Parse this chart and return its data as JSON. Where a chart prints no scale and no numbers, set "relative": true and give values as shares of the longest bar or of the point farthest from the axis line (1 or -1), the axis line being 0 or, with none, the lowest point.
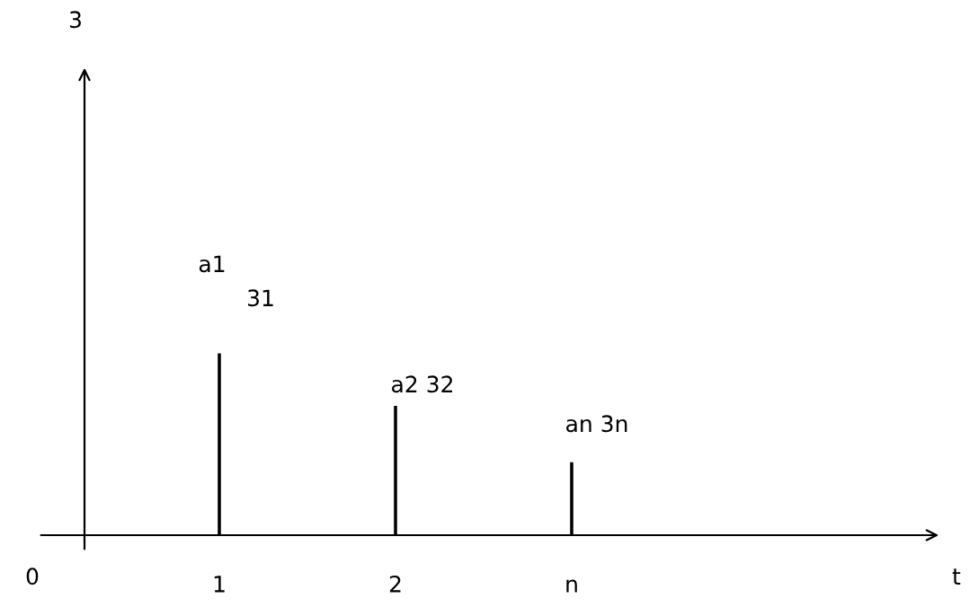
{
  "chart_data": {
    "type": "bar",
    "relative": true,
    "categories": [
      "1",
      "2",
      "n"
    ],
    "values": [
      1,
      0.71,
      0.4
    ],
    "color": "#000000",
    "grid": false,
    "annotations": [
      "a1",
      "31",
      "a2 32",
      "an 3n",
      "0",
      "t",
      "3"
    ]
  }
}
